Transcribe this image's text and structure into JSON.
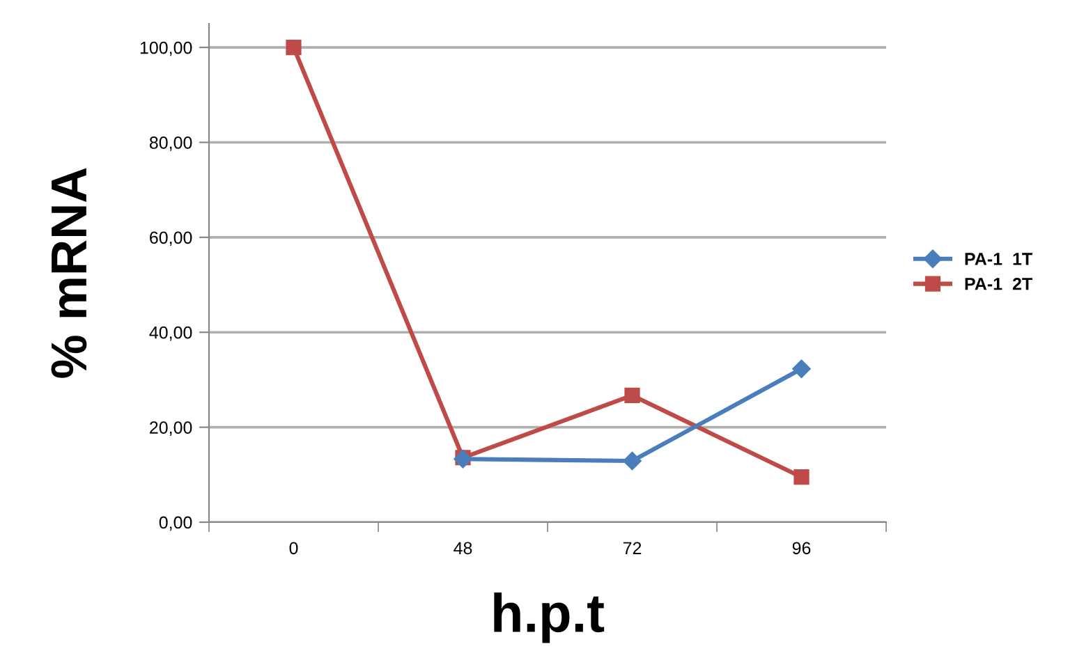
{
  "chart_data": {
    "type": "line",
    "xlabel": "h.p.t",
    "ylabel": "% mRNA",
    "categories": [
      "0",
      "48",
      "72",
      "96"
    ],
    "series": [
      {
        "name": "PA-1  1T",
        "color": "#4a7ebb",
        "marker": "diamond",
        "values": [
          null,
          13.3,
          12.9,
          32.3
        ]
      },
      {
        "name": "PA-1  2T",
        "color": "#be4b48",
        "marker": "square",
        "values": [
          100,
          13.6,
          26.7,
          9.5
        ]
      }
    ],
    "ylim": [
      0,
      105
    ],
    "yticks": [
      {
        "value": 0,
        "label": "0,00"
      },
      {
        "value": 20,
        "label": "20,00"
      },
      {
        "value": 40,
        "label": "40,00"
      },
      {
        "value": 60,
        "label": "60,00"
      },
      {
        "value": 80,
        "label": "80,00"
      },
      {
        "value": 100,
        "label": "100,00"
      }
    ],
    "grid": "y",
    "legend": "right",
    "line_style": "solid"
  }
}
